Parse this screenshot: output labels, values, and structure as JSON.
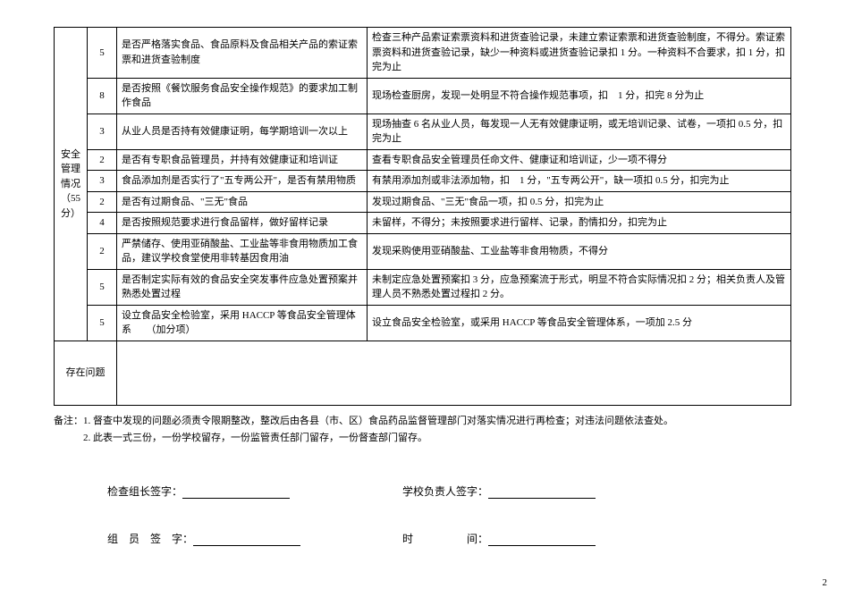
{
  "category": {
    "title_line1": "安全",
    "title_line2": "管理",
    "title_line3": "情况",
    "title_line4": "（55 分）"
  },
  "rows": [
    {
      "score": "5",
      "item": "是否严格落实食品、食品原料及食品相关产品的索证索票和进货查验制度",
      "std": "检查三种产品索证索票资料和进货查验记录，未建立索证索票和进货查验制度，不得分。索证索票资料和进货查验记录，缺少一种资料或进货查验记录扣 1 分。一种资料不合要求，扣 1 分，扣完为止"
    },
    {
      "score": "8",
      "item": "是否按照《餐饮服务食品安全操作规范》的要求加工制作食品",
      "std": "现场检查厨房，发现一处明显不符合操作规范事项，扣　1 分，扣完 8 分为止"
    },
    {
      "score": "3",
      "item": "从业人员是否持有效健康证明，每学期培训一次以上",
      "std": "现场抽查 6 名从业人员，每发现一人无有效健康证明，或无培训记录、试卷，一项扣 0.5 分，扣完为止"
    },
    {
      "score": "2",
      "item": "是否有专职食品管理员，并持有效健康证和培训证",
      "std": "查看专职食品安全管理员任命文件、健康证和培训证，少一项不得分"
    },
    {
      "score": "3",
      "item": "食品添加剂是否实行了\"五专两公开\"，是否有禁用物质",
      "std": "有禁用添加剂或非法添加物，扣　1 分，\"五专两公开\"，缺一项扣 0.5 分，扣完为止"
    },
    {
      "score": "2",
      "item": "是否有过期食品、\"三无\"食品",
      "std": "发现过期食品、\"三无\"食品一项，扣 0.5 分，扣完为止"
    },
    {
      "score": "4",
      "item": "是否按照规范要求进行食品留样，做好留样记录",
      "std": "未留样，不得分；未按照要求进行留样、记录，酌情扣分，扣完为止"
    },
    {
      "score": "2",
      "item": "严禁储存、使用亚硝酸盐、工业盐等非食用物质加工食品，建议学校食堂使用非转基因食用油",
      "std": "发现采购使用亚硝酸盐、工业盐等非食用物质，不得分"
    },
    {
      "score": "5",
      "item": "是否制定实际有效的食品安全突发事件应急处置预案并熟悉处置过程",
      "std": "未制定应急处置预案扣 3 分，应急预案流于形式，明显不符合实际情况扣 2 分；相关负责人及管理人员不熟悉处置过程扣 2 分。"
    },
    {
      "score": "5",
      "item": "设立食品安全检验室，采用 HACCP 等食品安全管理体系　　（加分项）",
      "std": "设立食品安全检验室，或采用 HACCP 等食品安全管理体系，一项加 2.5 分"
    }
  ],
  "issues_label": "存在问题",
  "notes": {
    "line1": "备注：1. 督查中发现的问题必须责令限期整改，整改后由各县（市、区）食品药品监督管理部门对落实情况进行再检查；对违法问题依法查处。",
    "line2": "　　　2. 此表一式三份，一份学校留存，一份监管责任部门留存，一份督查部门留存。"
  },
  "sig": {
    "leader_label": "检查组长签字：",
    "school_label": "学校负责人签字：",
    "member_label": "组　员　签　字：",
    "time_label": "时　　　　　间："
  },
  "pagenum": "2"
}
